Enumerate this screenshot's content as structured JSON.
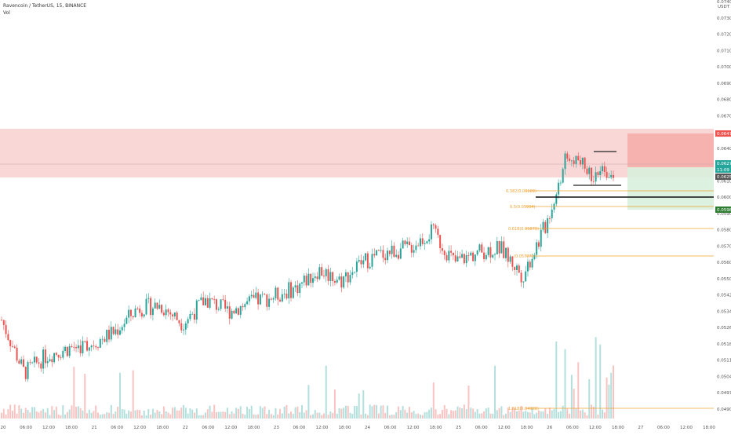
{
  "header": {
    "symbol_line": "Ravencoin / TetherUS, 15, BINANCE",
    "vol_label": "Vol"
  },
  "price_axis": {
    "currency": "USDT",
    "ticks": [
      "0.07400",
      "0.07300",
      "0.07200",
      "0.07100",
      "0.07000",
      "0.06900",
      "0.06800",
      "0.06700",
      "0.06600",
      "0.06400",
      "0.06300",
      "0.06100",
      "0.06000",
      "0.05900",
      "0.05800",
      "0.05700",
      "0.05600",
      "0.05500",
      "0.05420",
      "0.05340",
      "0.05260",
      "0.05180",
      "0.05110",
      "0.05040",
      "0.04970",
      "0.04905"
    ]
  },
  "time_axis": {
    "ticks": [
      "20",
      "06:00",
      "12:00",
      "18:00",
      "21",
      "06:00",
      "12:00",
      "18:00",
      "22",
      "06:00",
      "12:00",
      "18:00",
      "23",
      "06:00",
      "12:00",
      "18:00",
      "24",
      "06:00",
      "12:00",
      "18:00",
      "25",
      "06:00",
      "12:00",
      "18:00",
      "26",
      "06:00",
      "12:00",
      "18:00",
      "27",
      "06:00",
      "12:00",
      "18:00"
    ]
  },
  "tags": {
    "stop_price": "0.06478",
    "current_price": "0.06274",
    "countdown": "11:09",
    "entry_price": "0.06254",
    "target_price": "0.05981"
  },
  "fib_levels": [
    {
      "label": "0.382(0.06109)"
    },
    {
      "label": "0.5(0.05994)"
    },
    {
      "label": "0.618(0.05879)"
    },
    {
      "label": "(0.05727)"
    },
    {
      "label": "1.618(0.04908)"
    }
  ],
  "colors": {
    "up": "#26a69a",
    "down": "#ef5350",
    "fib": "#f0a030",
    "zone_red": "#f8c6c6",
    "zone_green": "#d9f0dd",
    "stop_tag": "#ef5350",
    "current_tag": "#26a69a",
    "entry_tag": "#555555",
    "target_tag": "#2e7d32"
  },
  "chart_data": {
    "type": "candlestick",
    "symbol": "Ravencoin / TetherUS",
    "interval": "15",
    "exchange": "BINANCE",
    "ylim": [
      0.04905,
      0.074
    ],
    "close_path": [
      [
        "20",
        0.0526
      ],
      [
        "20 06:00",
        0.049
      ],
      [
        "20 12:00",
        0.0502
      ],
      [
        "20 18:00",
        0.0507
      ],
      [
        "21",
        0.051
      ],
      [
        "21 06:00",
        0.0518
      ],
      [
        "21 12:00",
        0.0534
      ],
      [
        "21 18:00",
        0.0536
      ],
      [
        "22",
        0.0524
      ],
      [
        "22 06:00",
        0.054
      ],
      [
        "22 12:00",
        0.0532
      ],
      [
        "22 18:00",
        0.0538
      ],
      [
        "23",
        0.0542
      ],
      [
        "23 06:00",
        0.0548
      ],
      [
        "23 12:00",
        0.056
      ],
      [
        "23 18:00",
        0.0553
      ],
      [
        "24",
        0.0566
      ],
      [
        "24 06:00",
        0.0572
      ],
      [
        "24 12:00",
        0.0575
      ],
      [
        "24 18:00",
        0.0586
      ],
      [
        "25",
        0.0565
      ],
      [
        "25 06:00",
        0.0572
      ],
      [
        "25 12:00",
        0.0575
      ],
      [
        "25 18:00",
        0.0556
      ],
      [
        "26",
        0.059
      ],
      [
        "26 06:00",
        0.064
      ],
      [
        "26 12:00",
        0.0625
      ],
      [
        "26 15:00",
        0.0627
      ]
    ]
  }
}
